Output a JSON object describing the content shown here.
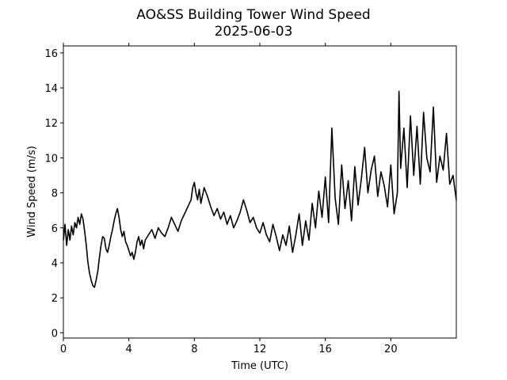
{
  "chart_data": {
    "type": "line",
    "title": "AO&SS Building Tower Wind Speed",
    "subtitle": "2025-06-03",
    "xlabel": "Time (UTC)",
    "ylabel": "Wind Speed (m/s)",
    "xlim": [
      0,
      24
    ],
    "ylim": [
      -0.3,
      16.4
    ],
    "xticks": [
      0,
      4,
      8,
      12,
      16,
      20
    ],
    "xtick_labels": [
      "0",
      "4",
      "8",
      "12",
      "16",
      "20"
    ],
    "yticks": [
      0,
      2,
      4,
      6,
      8,
      10,
      12,
      14,
      16
    ],
    "ytick_labels": [
      "0",
      "2",
      "4",
      "6",
      "8",
      "10",
      "12",
      "14",
      "16"
    ],
    "grid": false,
    "series": [
      {
        "color": "#000000",
        "x": [
          0.0,
          0.1,
          0.2,
          0.3,
          0.4,
          0.5,
          0.6,
          0.7,
          0.8,
          0.9,
          1.0,
          1.1,
          1.2,
          1.3,
          1.4,
          1.5,
          1.6,
          1.7,
          1.8,
          1.9,
          2.0,
          2.1,
          2.2,
          2.3,
          2.4,
          2.5,
          2.6,
          2.7,
          2.8,
          2.9,
          3.0,
          3.1,
          3.2,
          3.3,
          3.4,
          3.5,
          3.6,
          3.7,
          3.8,
          3.9,
          4.0,
          4.1,
          4.2,
          4.3,
          4.4,
          4.5,
          4.6,
          4.7,
          4.8,
          4.9,
          5.0,
          5.2,
          5.4,
          5.6,
          5.8,
          6.0,
          6.2,
          6.4,
          6.6,
          6.8,
          7.0,
          7.2,
          7.4,
          7.6,
          7.8,
          7.9,
          8.0,
          8.1,
          8.2,
          8.3,
          8.4,
          8.6,
          8.8,
          9.0,
          9.2,
          9.4,
          9.6,
          9.8,
          10.0,
          10.2,
          10.4,
          10.6,
          10.8,
          11.0,
          11.2,
          11.4,
          11.6,
          11.8,
          12.0,
          12.2,
          12.4,
          12.6,
          12.8,
          13.0,
          13.2,
          13.4,
          13.6,
          13.8,
          14.0,
          14.2,
          14.4,
          14.6,
          14.8,
          15.0,
          15.2,
          15.4,
          15.6,
          15.8,
          16.0,
          16.2,
          16.4,
          16.6,
          16.8,
          17.0,
          17.2,
          17.4,
          17.6,
          17.8,
          18.0,
          18.2,
          18.4,
          18.6,
          18.8,
          19.0,
          19.2,
          19.4,
          19.6,
          19.8,
          20.0,
          20.2,
          20.4,
          20.5,
          20.6,
          20.8,
          21.0,
          21.2,
          21.4,
          21.6,
          21.8,
          22.0,
          22.2,
          22.4,
          22.6,
          22.8,
          23.0,
          23.2,
          23.4,
          23.6,
          23.8,
          24.0
        ],
        "values": [
          5.3,
          6.2,
          5.0,
          5.9,
          5.3,
          6.1,
          5.6,
          6.3,
          6.0,
          6.6,
          6.2,
          6.8,
          6.5,
          5.8,
          5.0,
          4.0,
          3.4,
          3.0,
          2.7,
          2.6,
          3.0,
          3.5,
          4.3,
          5.0,
          5.5,
          5.4,
          4.8,
          4.6,
          5.0,
          5.5,
          5.9,
          6.4,
          6.8,
          7.1,
          6.6,
          5.9,
          5.5,
          5.8,
          5.2,
          5.0,
          4.7,
          4.4,
          4.6,
          4.2,
          4.6,
          5.2,
          5.5,
          5.0,
          5.3,
          4.8,
          5.3,
          5.6,
          5.9,
          5.4,
          6.0,
          5.7,
          5.5,
          6.0,
          6.6,
          6.2,
          5.8,
          6.4,
          6.8,
          7.2,
          7.6,
          8.3,
          8.6,
          8.0,
          7.6,
          8.2,
          7.4,
          8.3,
          7.8,
          7.2,
          6.7,
          7.1,
          6.5,
          6.9,
          6.2,
          6.7,
          6.0,
          6.4,
          6.9,
          7.6,
          7.0,
          6.3,
          6.6,
          6.0,
          5.7,
          6.3,
          5.6,
          5.2,
          6.2,
          5.5,
          4.7,
          5.6,
          5.0,
          6.1,
          4.6,
          5.6,
          6.8,
          5.0,
          6.4,
          5.3,
          7.4,
          6.0,
          8.1,
          6.6,
          8.9,
          6.3,
          11.7,
          7.7,
          6.2,
          9.6,
          7.1,
          8.7,
          6.4,
          9.5,
          7.3,
          8.8,
          10.6,
          8.0,
          9.3,
          10.1,
          7.8,
          9.2,
          8.4,
          7.2,
          9.6,
          6.8,
          8.0,
          13.8,
          9.4,
          11.7,
          8.3,
          12.4,
          9.0,
          11.8,
          8.5,
          12.6,
          10.0,
          9.2,
          12.9,
          8.6,
          10.1,
          9.3,
          11.4,
          8.5,
          9.0,
          7.6
        ]
      }
    ]
  }
}
